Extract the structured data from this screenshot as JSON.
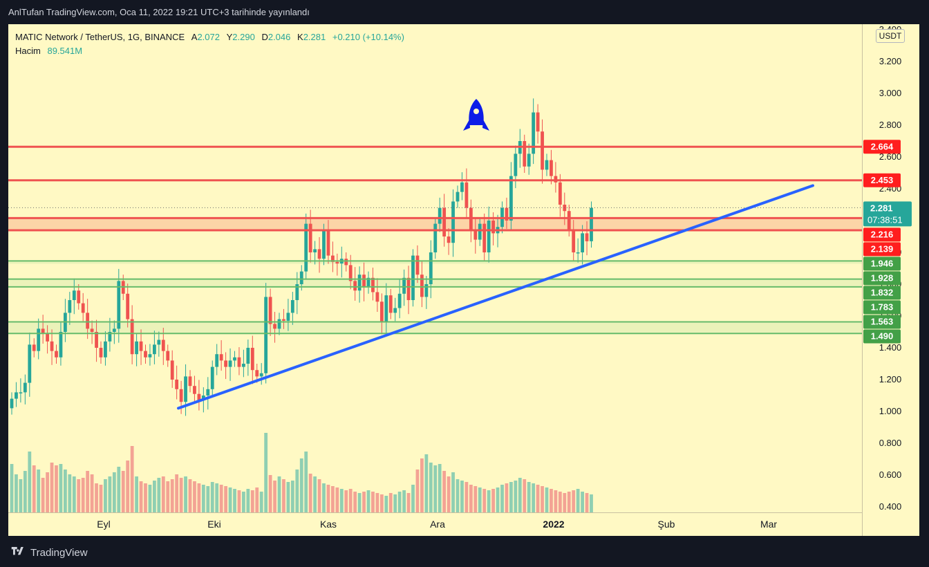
{
  "header": {
    "publish_text": "AnlTufan TradingView.com, Oca 11, 2022 19:21 UTC+3 tarihinde yayınlandı"
  },
  "legend": {
    "symbol": "MATIC Network / TetherUS, 1G, BINANCE",
    "open_label": "A",
    "open_value": "2.072",
    "high_label": "Y",
    "high_value": "2.290",
    "low_label": "D",
    "low_value": "2.046",
    "close_label": "K",
    "close_value": "2.281",
    "change": "+0.210 (+10.14%)",
    "volume_label": "Hacim",
    "volume_value": "89.541M"
  },
  "currency": "USDT",
  "footer": {
    "brand": "TradingView"
  },
  "colors": {
    "background": "#fff9c4",
    "up": "#26a69a",
    "down": "#ef5350",
    "resistance": "#ef5350",
    "support": "#66bb6a",
    "trendline": "#2962ff",
    "rocket": "#0d1de8"
  },
  "chart_data": {
    "type": "candlestick",
    "title": "MATIC Network / TetherUS, 1G, BINANCE",
    "ylim": [
      0.4,
      3.4
    ],
    "y_ticks": [
      "0.400",
      "0.600",
      "0.800",
      "1.000",
      "1.200",
      "1.400",
      "1.600",
      "1.800",
      "2.000",
      "2.200",
      "2.400",
      "2.600",
      "2.800",
      "3.000",
      "3.200",
      "3.400"
    ],
    "x_labels": [
      "Eyl",
      "Eki",
      "Kas",
      "Ara",
      "2022",
      "Şub",
      "Mar"
    ],
    "last_price": "2.281",
    "countdown": "07:38:51",
    "price_labels": [
      {
        "value": 2.664,
        "label": "2.664",
        "kind": "resistance"
      },
      {
        "value": 2.453,
        "label": "2.453",
        "kind": "resistance"
      },
      {
        "value": 2.216,
        "label": "2.216",
        "kind": "resistance"
      },
      {
        "value": 2.139,
        "label": "2.139",
        "kind": "resistance"
      },
      {
        "value": 1.946,
        "label": "1.946",
        "kind": "support"
      },
      {
        "value": 1.928,
        "label": "1.928",
        "kind": "support"
      },
      {
        "value": 1.832,
        "label": "1.832",
        "kind": "support"
      },
      {
        "value": 1.783,
        "label": "1.783",
        "kind": "support"
      },
      {
        "value": 1.563,
        "label": "1.563",
        "kind": "support"
      },
      {
        "value": 1.49,
        "label": "1.490",
        "kind": "support"
      }
    ],
    "resistance_zone": [
      2.139,
      2.216
    ],
    "resistance_levels": [
      2.664,
      2.453,
      2.216,
      2.139
    ],
    "support_levels": [
      1.946,
      1.832,
      1.783,
      1.563,
      1.49
    ],
    "trendline": {
      "from": {
        "date": "2021-09-20",
        "price": 1.02
      },
      "to": {
        "date": "2022-02-20",
        "price": 2.42
      }
    },
    "closes": [
      1.08,
      1.12,
      1.12,
      1.18,
      1.42,
      1.38,
      1.52,
      1.49,
      1.44,
      1.38,
      1.34,
      1.5,
      1.62,
      1.7,
      1.76,
      1.68,
      1.62,
      1.52,
      1.5,
      1.4,
      1.34,
      1.44,
      1.5,
      1.52,
      1.82,
      1.74,
      1.58,
      1.36,
      1.44,
      1.38,
      1.34,
      1.36,
      1.42,
      1.45,
      1.38,
      1.32,
      1.2,
      1.14,
      1.06,
      1.22,
      1.16,
      1.11,
      1.07,
      1.1,
      1.14,
      1.28,
      1.36,
      1.32,
      1.28,
      1.32,
      1.34,
      1.28,
      1.3,
      1.4,
      1.26,
      1.22,
      1.24,
      1.72,
      1.55,
      1.52,
      1.58,
      1.57,
      1.62,
      1.7,
      1.8,
      1.88,
      2.18,
      2.0,
      2.02,
      1.96,
      2.14,
      1.98,
      1.94,
      1.93,
      1.96,
      1.92,
      1.82,
      1.76,
      1.86,
      1.78,
      1.84,
      1.75,
      1.69,
      1.56,
      1.73,
      1.62,
      1.65,
      1.74,
      1.84,
      1.7,
      1.98,
      1.86,
      1.72,
      1.8,
      2.0,
      2.18,
      2.28,
      2.1,
      2.06,
      2.32,
      2.38,
      2.44,
      2.28,
      2.14,
      2.08,
      2.18,
      2.0,
      2.2,
      2.12,
      2.16,
      2.28,
      2.2,
      2.48,
      2.62,
      2.7,
      2.54,
      2.62,
      2.88,
      2.76,
      2.52,
      2.58,
      2.48,
      2.44,
      2.3,
      2.26,
      2.14,
      2.0,
      2.0,
      2.12,
      2.07,
      2.28
    ],
    "volumes": [
      70,
      55,
      48,
      60,
      88,
      68,
      62,
      50,
      58,
      72,
      68,
      70,
      62,
      55,
      52,
      48,
      50,
      60,
      55,
      42,
      40,
      48,
      52,
      58,
      66,
      60,
      75,
      96,
      52,
      45,
      42,
      40,
      46,
      50,
      52,
      45,
      48,
      55,
      50,
      52,
      48,
      45,
      42,
      40,
      38,
      44,
      42,
      40,
      38,
      36,
      34,
      32,
      30,
      34,
      32,
      36,
      30,
      115,
      54,
      46,
      52,
      48,
      44,
      46,
      62,
      78,
      88,
      56,
      52,
      48,
      42,
      40,
      38,
      36,
      34,
      32,
      34,
      30,
      28,
      30,
      32,
      30,
      28,
      26,
      24,
      28,
      26,
      30,
      32,
      28,
      40,
      62,
      78,
      84,
      72,
      68,
      70,
      60,
      52,
      58,
      48,
      46,
      44,
      40,
      38,
      36,
      34,
      32,
      34,
      36,
      40,
      42,
      44,
      46,
      50,
      48,
      44,
      42,
      40,
      38,
      36,
      34,
      32,
      30,
      28,
      30,
      32,
      34,
      30,
      28,
      26
    ]
  }
}
